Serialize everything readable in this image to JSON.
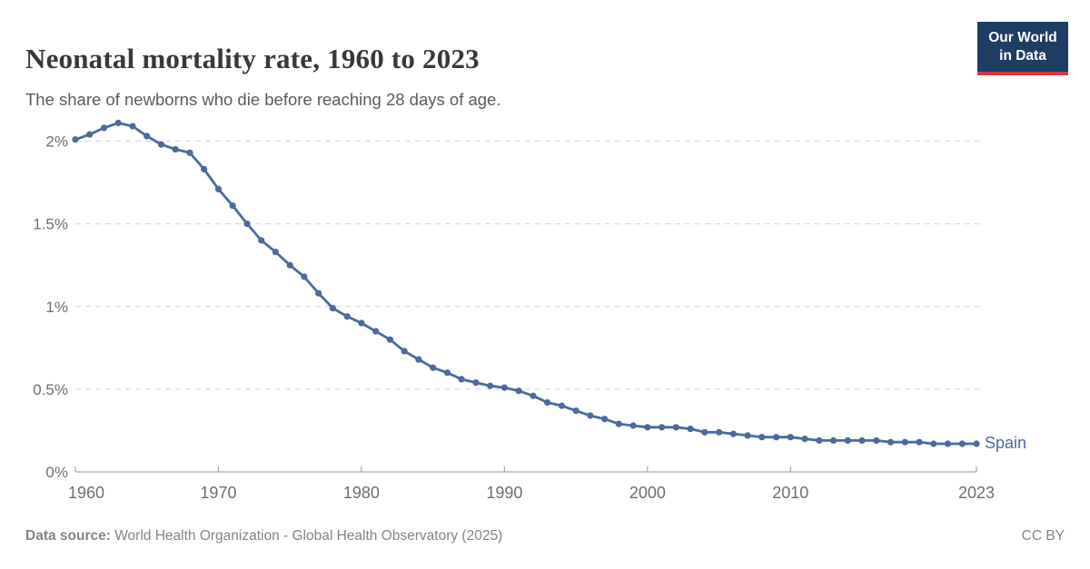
{
  "header": {
    "title": "Neonatal mortality rate, 1960 to 2023",
    "subtitle": "The share of newborns who die before reaching 28 days of age.",
    "logo": {
      "line1": "Our World",
      "line2": "in Data"
    }
  },
  "footer": {
    "source_label": "Data source:",
    "source_text": " World Health Organization - Global Health Observatory (2025)",
    "license": "CC BY"
  },
  "colors": {
    "line": "#4C6A9C",
    "logo_background": "#1d3d63",
    "logo_stripe": "#d6383c",
    "gridline": "#dcdcdc",
    "axis": "#a8a8a8",
    "tick_label": "#6e6e6e"
  },
  "chart_data": {
    "type": "line",
    "title": "Neonatal mortality rate, 1960 to 2023",
    "subtitle": "The share of newborns who die before reaching 28 days of age.",
    "xlabel": "",
    "ylabel": "",
    "xlim": [
      1960,
      2023
    ],
    "ylim": [
      0,
      2.14
    ],
    "grid": "horizontal-dashed",
    "legend_position": "end-of-line-label",
    "x_ticks": [
      {
        "value": 1960,
        "label": "1960"
      },
      {
        "value": 1970,
        "label": "1970"
      },
      {
        "value": 1980,
        "label": "1980"
      },
      {
        "value": 1990,
        "label": "1990"
      },
      {
        "value": 2000,
        "label": "2000"
      },
      {
        "value": 2010,
        "label": "2010"
      },
      {
        "value": 2023,
        "label": "2023"
      }
    ],
    "y_ticks": [
      {
        "value": 0,
        "label": "0%"
      },
      {
        "value": 0.5,
        "label": "0.5%"
      },
      {
        "value": 1,
        "label": "1%"
      },
      {
        "value": 1.5,
        "label": "1.5%"
      },
      {
        "value": 2,
        "label": "2%"
      }
    ],
    "series": [
      {
        "name": "Spain",
        "color": "#4C6A9C",
        "unit": "%",
        "x": [
          1960,
          1961,
          1962,
          1963,
          1964,
          1965,
          1966,
          1967,
          1968,
          1969,
          1970,
          1971,
          1972,
          1973,
          1974,
          1975,
          1976,
          1977,
          1978,
          1979,
          1980,
          1981,
          1982,
          1983,
          1984,
          1985,
          1986,
          1987,
          1988,
          1989,
          1990,
          1991,
          1992,
          1993,
          1994,
          1995,
          1996,
          1997,
          1998,
          1999,
          2000,
          2001,
          2002,
          2003,
          2004,
          2005,
          2006,
          2007,
          2008,
          2009,
          2010,
          2011,
          2012,
          2013,
          2014,
          2015,
          2016,
          2017,
          2018,
          2019,
          2020,
          2021,
          2022,
          2023
        ],
        "values": [
          2.01,
          2.04,
          2.08,
          2.11,
          2.09,
          2.03,
          1.98,
          1.95,
          1.93,
          1.83,
          1.71,
          1.61,
          1.5,
          1.4,
          1.33,
          1.25,
          1.18,
          1.08,
          0.99,
          0.94,
          0.9,
          0.85,
          0.8,
          0.73,
          0.68,
          0.63,
          0.6,
          0.56,
          0.54,
          0.52,
          0.51,
          0.49,
          0.46,
          0.42,
          0.4,
          0.37,
          0.34,
          0.32,
          0.29,
          0.28,
          0.27,
          0.27,
          0.27,
          0.26,
          0.24,
          0.24,
          0.23,
          0.22,
          0.21,
          0.21,
          0.21,
          0.2,
          0.19,
          0.19,
          0.19,
          0.19,
          0.19,
          0.18,
          0.18,
          0.18,
          0.17,
          0.17,
          0.17,
          0.17
        ]
      }
    ]
  }
}
